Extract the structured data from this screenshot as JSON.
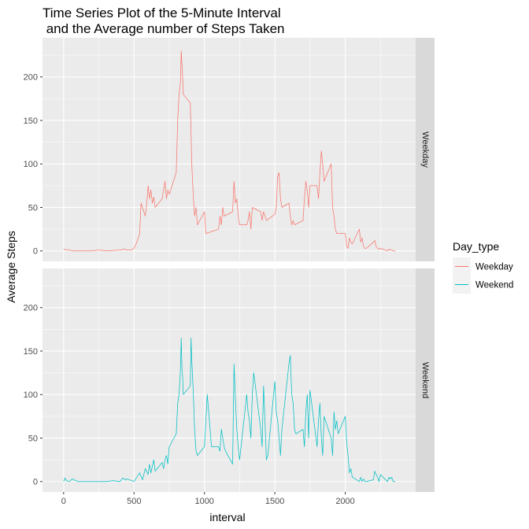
{
  "chart_data": {
    "type": "line",
    "title_line1": "Time Series Plot of the 5-Minute Interval",
    "title_line2": " and the Average number of Steps Taken",
    "xlabel": "interval",
    "ylabel": "Average Steps",
    "xlim": [
      -150,
      2500
    ],
    "ylim": [
      -12,
      245
    ],
    "x_ticks": [
      0,
      500,
      1000,
      1500,
      2000
    ],
    "y_ticks": [
      0,
      50,
      100,
      150,
      200
    ],
    "grid": true,
    "legend": {
      "title": "Day_type",
      "placement": "right"
    },
    "series": [
      {
        "name": "Weekday",
        "facet": "Weekday",
        "color": "#F8766D",
        "points": [
          [
            0,
            2
          ],
          [
            20,
            1
          ],
          [
            40,
            1
          ],
          [
            60,
            0
          ],
          [
            100,
            0
          ],
          [
            200,
            0
          ],
          [
            250,
            1
          ],
          [
            300,
            0
          ],
          [
            400,
            1
          ],
          [
            430,
            2
          ],
          [
            450,
            1
          ],
          [
            480,
            1
          ],
          [
            500,
            3
          ],
          [
            520,
            10
          ],
          [
            540,
            20
          ],
          [
            550,
            55
          ],
          [
            560,
            50
          ],
          [
            570,
            45
          ],
          [
            580,
            40
          ],
          [
            590,
            55
          ],
          [
            600,
            75
          ],
          [
            610,
            60
          ],
          [
            620,
            70
          ],
          [
            630,
            55
          ],
          [
            640,
            62
          ],
          [
            650,
            50
          ],
          [
            700,
            60
          ],
          [
            710,
            70
          ],
          [
            720,
            80
          ],
          [
            730,
            60
          ],
          [
            740,
            70
          ],
          [
            750,
            65
          ],
          [
            800,
            90
          ],
          [
            810,
            150
          ],
          [
            820,
            180
          ],
          [
            830,
            195
          ],
          [
            835,
            230
          ],
          [
            840,
            215
          ],
          [
            845,
            200
          ],
          [
            850,
            180
          ],
          [
            900,
            170
          ],
          [
            910,
            100
          ],
          [
            920,
            65
          ],
          [
            930,
            40
          ],
          [
            940,
            50
          ],
          [
            950,
            30
          ],
          [
            1000,
            45
          ],
          [
            1010,
            20
          ],
          [
            1100,
            25
          ],
          [
            1110,
            40
          ],
          [
            1120,
            30
          ],
          [
            1130,
            50
          ],
          [
            1140,
            40
          ],
          [
            1200,
            45
          ],
          [
            1210,
            80
          ],
          [
            1220,
            55
          ],
          [
            1230,
            60
          ],
          [
            1240,
            40
          ],
          [
            1250,
            30
          ],
          [
            1300,
            30
          ],
          [
            1310,
            35
          ],
          [
            1320,
            45
          ],
          [
            1330,
            25
          ],
          [
            1340,
            50
          ],
          [
            1400,
            45
          ],
          [
            1410,
            35
          ],
          [
            1420,
            45
          ],
          [
            1430,
            40
          ],
          [
            1440,
            35
          ],
          [
            1500,
            42
          ],
          [
            1510,
            50
          ],
          [
            1520,
            85
          ],
          [
            1530,
            90
          ],
          [
            1540,
            60
          ],
          [
            1550,
            50
          ],
          [
            1600,
            55
          ],
          [
            1610,
            40
          ],
          [
            1620,
            30
          ],
          [
            1630,
            35
          ],
          [
            1640,
            30
          ],
          [
            1700,
            35
          ],
          [
            1710,
            60
          ],
          [
            1720,
            80
          ],
          [
            1730,
            70
          ],
          [
            1740,
            50
          ],
          [
            1750,
            75
          ],
          [
            1800,
            75
          ],
          [
            1810,
            60
          ],
          [
            1820,
            90
          ],
          [
            1830,
            115
          ],
          [
            1840,
            100
          ],
          [
            1850,
            80
          ],
          [
            1900,
            100
          ],
          [
            1910,
            50
          ],
          [
            1920,
            40
          ],
          [
            1930,
            25
          ],
          [
            1940,
            20
          ],
          [
            1950,
            20
          ],
          [
            2000,
            20
          ],
          [
            2010,
            5
          ],
          [
            2020,
            3
          ],
          [
            2030,
            15
          ],
          [
            2040,
            10
          ],
          [
            2050,
            8
          ],
          [
            2100,
            25
          ],
          [
            2110,
            10
          ],
          [
            2120,
            15
          ],
          [
            2130,
            5
          ],
          [
            2140,
            3
          ],
          [
            2150,
            3
          ],
          [
            2200,
            10
          ],
          [
            2210,
            12
          ],
          [
            2220,
            5
          ],
          [
            2230,
            3
          ],
          [
            2240,
            2
          ],
          [
            2250,
            3
          ],
          [
            2300,
            0
          ],
          [
            2310,
            2
          ],
          [
            2320,
            1
          ],
          [
            2330,
            1
          ],
          [
            2340,
            0
          ],
          [
            2350,
            0
          ],
          [
            2355,
            0
          ]
        ]
      },
      {
        "name": "Weekend",
        "facet": "Weekend",
        "color": "#00BFC4",
        "points": [
          [
            0,
            0
          ],
          [
            10,
            4
          ],
          [
            20,
            1
          ],
          [
            40,
            0
          ],
          [
            60,
            3
          ],
          [
            100,
            0
          ],
          [
            200,
            0
          ],
          [
            300,
            0
          ],
          [
            350,
            1
          ],
          [
            400,
            0
          ],
          [
            420,
            4
          ],
          [
            440,
            2
          ],
          [
            450,
            3
          ],
          [
            500,
            0
          ],
          [
            520,
            5
          ],
          [
            540,
            10
          ],
          [
            560,
            2
          ],
          [
            580,
            15
          ],
          [
            600,
            8
          ],
          [
            610,
            20
          ],
          [
            620,
            10
          ],
          [
            640,
            25
          ],
          [
            650,
            12
          ],
          [
            700,
            22
          ],
          [
            710,
            15
          ],
          [
            720,
            25
          ],
          [
            730,
            30
          ],
          [
            740,
            20
          ],
          [
            750,
            40
          ],
          [
            800,
            55
          ],
          [
            810,
            90
          ],
          [
            820,
            100
          ],
          [
            830,
            130
          ],
          [
            835,
            165
          ],
          [
            840,
            130
          ],
          [
            845,
            120
          ],
          [
            850,
            100
          ],
          [
            900,
            110
          ],
          [
            905,
            165
          ],
          [
            910,
            140
          ],
          [
            920,
            105
          ],
          [
            930,
            60
          ],
          [
            940,
            35
          ],
          [
            950,
            30
          ],
          [
            1000,
            40
          ],
          [
            1010,
            70
          ],
          [
            1020,
            100
          ],
          [
            1030,
            80
          ],
          [
            1040,
            60
          ],
          [
            1050,
            40
          ],
          [
            1100,
            40
          ],
          [
            1110,
            35
          ],
          [
            1120,
            60
          ],
          [
            1130,
            50
          ],
          [
            1140,
            40
          ],
          [
            1150,
            35
          ],
          [
            1200,
            20
          ],
          [
            1210,
            135
          ],
          [
            1220,
            95
          ],
          [
            1230,
            60
          ],
          [
            1240,
            40
          ],
          [
            1250,
            25
          ],
          [
            1300,
            100
          ],
          [
            1310,
            80
          ],
          [
            1320,
            70
          ],
          [
            1330,
            50
          ],
          [
            1340,
            100
          ],
          [
            1350,
            125
          ],
          [
            1400,
            60
          ],
          [
            1410,
            40
          ],
          [
            1420,
            110
          ],
          [
            1430,
            70
          ],
          [
            1440,
            25
          ],
          [
            1450,
            30
          ],
          [
            1500,
            115
          ],
          [
            1510,
            80
          ],
          [
            1520,
            70
          ],
          [
            1530,
            50
          ],
          [
            1540,
            30
          ],
          [
            1550,
            60
          ],
          [
            1600,
            135
          ],
          [
            1610,
            145
          ],
          [
            1620,
            100
          ],
          [
            1630,
            90
          ],
          [
            1640,
            60
          ],
          [
            1650,
            55
          ],
          [
            1700,
            60
          ],
          [
            1710,
            40
          ],
          [
            1720,
            80
          ],
          [
            1730,
            100
          ],
          [
            1740,
            50
          ],
          [
            1750,
            105
          ],
          [
            1800,
            40
          ],
          [
            1810,
            70
          ],
          [
            1820,
            90
          ],
          [
            1830,
            50
          ],
          [
            1840,
            30
          ],
          [
            1850,
            75
          ],
          [
            1900,
            50
          ],
          [
            1910,
            30
          ],
          [
            1920,
            80
          ],
          [
            1930,
            60
          ],
          [
            1940,
            70
          ],
          [
            1950,
            55
          ],
          [
            2000,
            75
          ],
          [
            2010,
            45
          ],
          [
            2020,
            30
          ],
          [
            2030,
            10
          ],
          [
            2040,
            15
          ],
          [
            2050,
            5
          ],
          [
            2100,
            0
          ],
          [
            2110,
            5
          ],
          [
            2120,
            0
          ],
          [
            2130,
            3
          ],
          [
            2140,
            0
          ],
          [
            2150,
            0
          ],
          [
            2200,
            2
          ],
          [
            2210,
            12
          ],
          [
            2220,
            8
          ],
          [
            2230,
            5
          ],
          [
            2240,
            0
          ],
          [
            2250,
            8
          ],
          [
            2300,
            0
          ],
          [
            2310,
            5
          ],
          [
            2320,
            3
          ],
          [
            2330,
            5
          ],
          [
            2340,
            0
          ],
          [
            2350,
            0
          ],
          [
            2355,
            0
          ]
        ]
      }
    ]
  }
}
